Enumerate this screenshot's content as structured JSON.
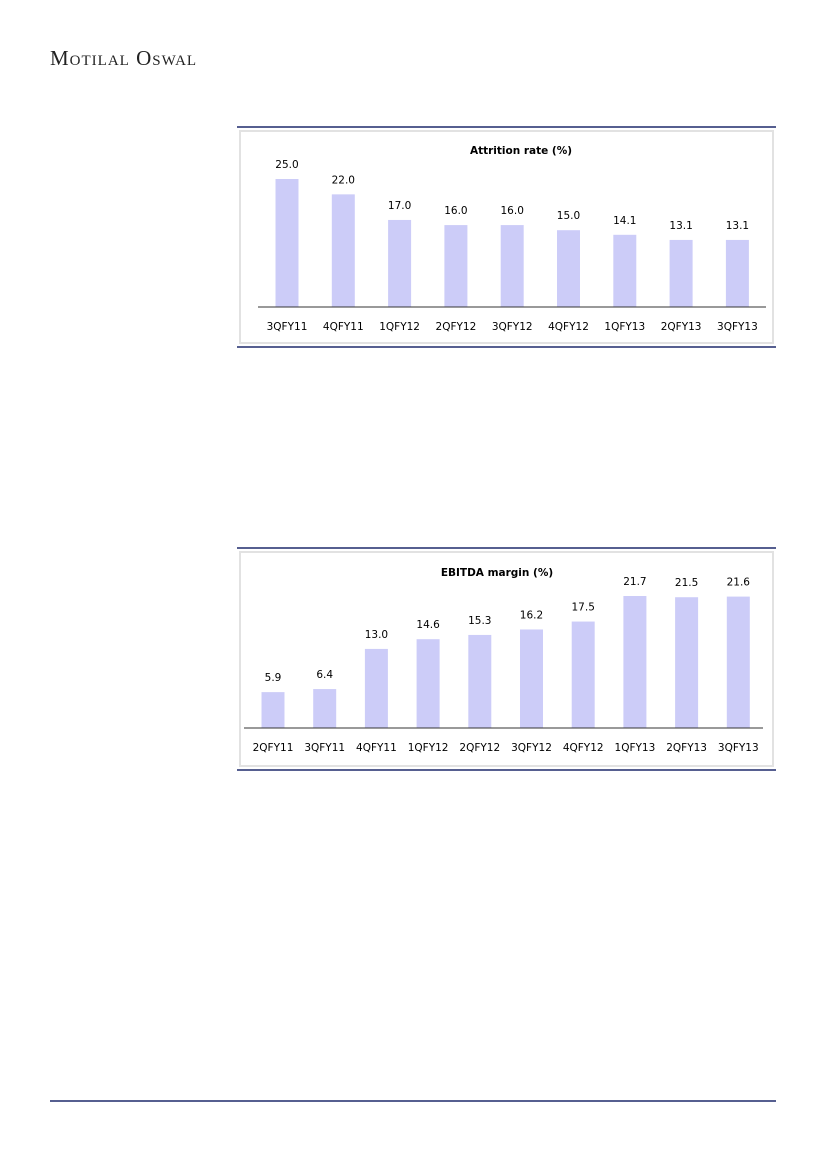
{
  "header": {
    "brand": "Motilal Oswal"
  },
  "chart_data": [
    {
      "type": "bar",
      "title": "Attrition rate (%)",
      "categories": [
        "3QFY11",
        "4QFY11",
        "1QFY12",
        "2QFY12",
        "3QFY12",
        "4QFY12",
        "1QFY13",
        "2QFY13",
        "3QFY13"
      ],
      "values": [
        25.0,
        22.0,
        17.0,
        16.0,
        16.0,
        15.0,
        14.1,
        13.1,
        13.1
      ],
      "value_labels": [
        "25.0",
        "22.0",
        "17.0",
        "16.0",
        "16.0",
        "15.0",
        "14.1",
        "13.1",
        "13.1"
      ],
      "color": "#ccccf8"
    },
    {
      "type": "bar",
      "title": "EBITDA margin (%)",
      "categories": [
        "2QFY11",
        "3QFY11",
        "4QFY11",
        "1QFY12",
        "2QFY12",
        "3QFY12",
        "4QFY12",
        "1QFY13",
        "2QFY13",
        "3QFY13"
      ],
      "values": [
        5.9,
        6.4,
        13.0,
        14.6,
        15.3,
        16.2,
        17.5,
        21.7,
        21.5,
        21.6
      ],
      "value_labels": [
        "5.9",
        "6.4",
        "13.0",
        "14.6",
        "15.3",
        "16.2",
        "17.5",
        "21.7",
        "21.5",
        "21.6"
      ],
      "color": "#ccccf8"
    }
  ]
}
